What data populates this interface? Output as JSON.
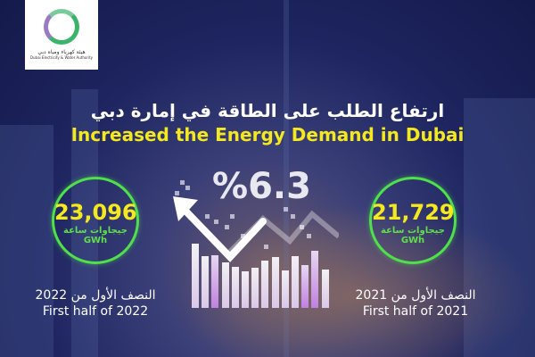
{
  "logo": {
    "arabic": "هيئة كهرباء ومياه دبي",
    "english": "Dubai Electricity & Water Authority"
  },
  "title": {
    "arabic": "ارتفاع الطلب على الطاقة في إمارة دبي",
    "english": "Increased the Energy Demand in Dubai"
  },
  "growth": {
    "value": "%6.3",
    "direction": "up"
  },
  "left": {
    "value": "23,096",
    "unit_ar": "جيجاوات ساعة",
    "unit_en": "GWh",
    "period_ar": "النصف الأول من 2022",
    "period_en": "First half of 2022"
  },
  "right": {
    "value": "21,729",
    "unit_ar": "جيجاوات ساعة",
    "unit_en": "GWh",
    "period_ar": "النصف الأول من 2021",
    "period_en": "First half of 2021"
  },
  "colors": {
    "accent_yellow": "#f4e81e",
    "accent_green": "#4fe04a",
    "background": "#1e2560"
  }
}
